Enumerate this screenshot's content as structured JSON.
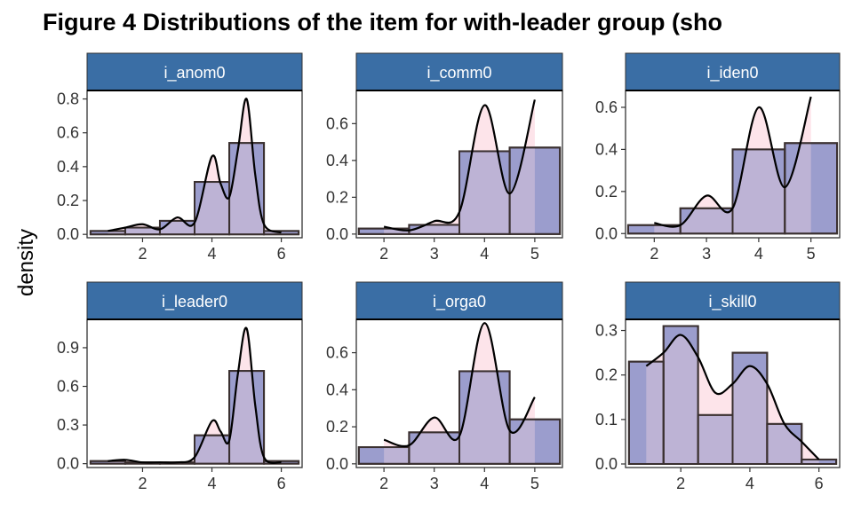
{
  "figure": {
    "title": "Figure  4 Distributions of the item for with-leader group (sho",
    "ylabel": "density"
  },
  "colors": {
    "strip": "#3a6ea5",
    "bar_fill": "#8a8cc4",
    "density_fill": "#fde4ea",
    "overlap": "#a892c4",
    "line": "#000000",
    "bar_edge": "#3a3030"
  },
  "chart_data": [
    {
      "type": "bar",
      "panel": "i_anom0",
      "bin_edges": [
        0.5,
        1.5,
        2.5,
        3.5,
        4.5,
        5.5,
        6.5
      ],
      "values": [
        0.02,
        0.04,
        0.08,
        0.31,
        0.54,
        0.02
      ],
      "xlim": [
        0.4,
        6.6
      ],
      "ylim": [
        -0.02,
        0.85
      ],
      "xticks": [
        2,
        4,
        6
      ],
      "yticks": [
        0.0,
        0.2,
        0.4,
        0.6,
        0.8
      ],
      "ytick_labels": [
        "0.0",
        "0.2",
        "0.4",
        "0.6",
        "0.8"
      ],
      "density_x": [
        1,
        1.5,
        2,
        2.5,
        3,
        3.5,
        4,
        4.25,
        4.5,
        4.75,
        5,
        5.25,
        5.5,
        6
      ],
      "density_y": [
        0.02,
        0.04,
        0.06,
        0.03,
        0.1,
        0.07,
        0.46,
        0.3,
        0.22,
        0.5,
        0.8,
        0.35,
        0.06,
        0.01
      ]
    },
    {
      "type": "bar",
      "panel": "i_comm0",
      "bin_edges": [
        1.5,
        2.5,
        3.5,
        4.5,
        5.5
      ],
      "values": [
        0.03,
        0.05,
        0.45,
        0.47
      ],
      "xlim": [
        1.45,
        5.55
      ],
      "ylim": [
        -0.02,
        0.78
      ],
      "xticks": [
        2,
        3,
        4,
        5
      ],
      "yticks": [
        0.0,
        0.2,
        0.4,
        0.6
      ],
      "ytick_labels": [
        "0.0",
        "0.2",
        "0.4",
        "0.6"
      ],
      "density_x": [
        2,
        2.5,
        3,
        3.5,
        4,
        4.5,
        5
      ],
      "density_y": [
        0.04,
        0.02,
        0.07,
        0.12,
        0.7,
        0.22,
        0.73
      ]
    },
    {
      "type": "bar",
      "panel": "i_iden0",
      "bin_edges": [
        1.5,
        2.5,
        3.5,
        4.5,
        5.5
      ],
      "values": [
        0.04,
        0.12,
        0.4,
        0.43
      ],
      "xlim": [
        1.45,
        5.55
      ],
      "ylim": [
        -0.02,
        0.68
      ],
      "xticks": [
        2,
        3,
        4,
        5
      ],
      "yticks": [
        0.0,
        0.2,
        0.4,
        0.6
      ],
      "ytick_labels": [
        "0.0",
        "0.2",
        "0.4",
        "0.6"
      ],
      "density_x": [
        2,
        2.5,
        3,
        3.5,
        4,
        4.5,
        5
      ],
      "density_y": [
        0.05,
        0.04,
        0.18,
        0.12,
        0.6,
        0.22,
        0.65
      ]
    },
    {
      "type": "bar",
      "panel": "i_leader0",
      "bin_edges": [
        0.5,
        1.5,
        2.5,
        3.5,
        4.5,
        5.5,
        6.5
      ],
      "values": [
        0.02,
        0.01,
        0.01,
        0.22,
        0.72,
        0.02
      ],
      "xlim": [
        0.4,
        6.6
      ],
      "ylim": [
        -0.03,
        1.12
      ],
      "xticks": [
        2,
        4,
        6
      ],
      "yticks": [
        0.0,
        0.3,
        0.6,
        0.9
      ],
      "ytick_labels": [
        "0.0",
        "0.3",
        "0.6",
        "0.9"
      ],
      "density_x": [
        1,
        1.5,
        2,
        2.5,
        3,
        3.5,
        4,
        4.25,
        4.5,
        4.75,
        5,
        5.25,
        5.5,
        6
      ],
      "density_y": [
        0.02,
        0.03,
        0.01,
        0.01,
        0.01,
        0.05,
        0.33,
        0.25,
        0.18,
        0.7,
        1.05,
        0.45,
        0.05,
        0.01
      ]
    },
    {
      "type": "bar",
      "panel": "i_orga0",
      "bin_edges": [
        1.5,
        2.5,
        3.5,
        4.5,
        5.5
      ],
      "values": [
        0.09,
        0.17,
        0.5,
        0.24
      ],
      "xlim": [
        1.45,
        5.55
      ],
      "ylim": [
        -0.02,
        0.78
      ],
      "xticks": [
        2,
        3,
        4,
        5
      ],
      "yticks": [
        0.0,
        0.2,
        0.4,
        0.6
      ],
      "ytick_labels": [
        "0.0",
        "0.2",
        "0.4",
        "0.6"
      ],
      "density_x": [
        2,
        2.5,
        3,
        3.5,
        4,
        4.5,
        5
      ],
      "density_y": [
        0.13,
        0.1,
        0.25,
        0.15,
        0.76,
        0.18,
        0.36
      ]
    },
    {
      "type": "bar",
      "panel": "i_skill0",
      "bin_edges": [
        0.5,
        1.5,
        2.5,
        3.5,
        4.5,
        5.5,
        6.5
      ],
      "values": [
        0.23,
        0.31,
        0.11,
        0.25,
        0.09,
        0.01
      ],
      "xlim": [
        0.4,
        6.6
      ],
      "ylim": [
        -0.008,
        0.325
      ],
      "xticks": [
        2,
        4,
        6
      ],
      "yticks": [
        0.0,
        0.1,
        0.2,
        0.3
      ],
      "ytick_labels": [
        "0.0",
        "0.1",
        "0.2",
        "0.3"
      ],
      "density_x": [
        1,
        1.5,
        2,
        2.5,
        3,
        3.5,
        4,
        4.5,
        5,
        5.5,
        6
      ],
      "density_y": [
        0.22,
        0.25,
        0.29,
        0.24,
        0.16,
        0.18,
        0.22,
        0.18,
        0.09,
        0.05,
        0.01
      ]
    }
  ]
}
